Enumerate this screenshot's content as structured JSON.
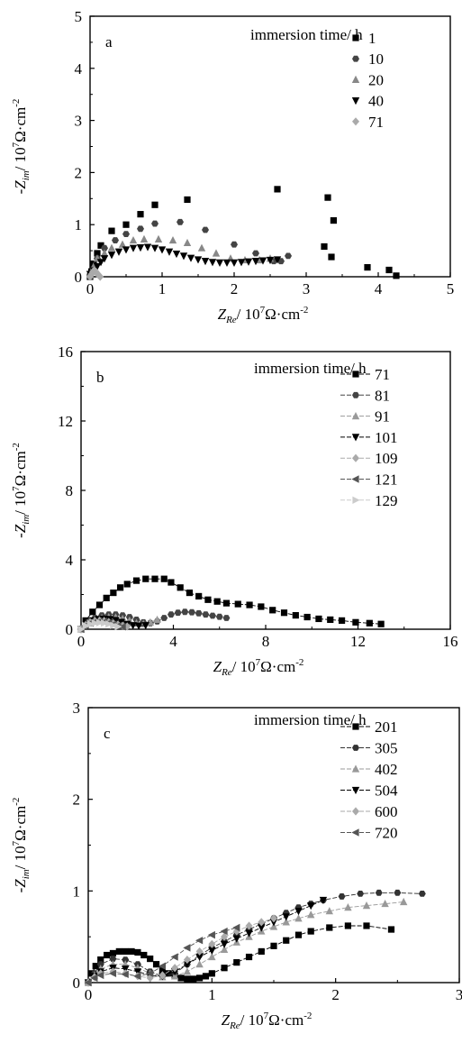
{
  "chart_data": [
    {
      "type": "scatter",
      "panel_label": "a",
      "legend_title": "immersion time/ h",
      "legend_placement": "top-right",
      "connected": false,
      "xlabel": {
        "main": "Z",
        "sub": "Re",
        "unit_pre": "/ 10",
        "sup": "7",
        "unit_post": "Ω·cm"
      },
      "ylabel": {
        "main": "-Z",
        "sub": "im",
        "unit_pre": "/ 10",
        "sup": "7",
        "unit_post": "Ω·cm"
      },
      "xlim": [
        0,
        5
      ],
      "ylim": [
        0,
        5
      ],
      "xticks": [
        "0",
        "1",
        "2",
        "3",
        "4",
        "5"
      ],
      "yticks": [
        "0",
        "1",
        "2",
        "3",
        "4",
        "5"
      ],
      "grid": false,
      "series": [
        {
          "name": "1",
          "marker": "square",
          "color": "#000000",
          "x": [
            0.0,
            0.02,
            0.05,
            0.1,
            0.15,
            0.3,
            0.5,
            0.7,
            0.9,
            1.35,
            2.6,
            3.25,
            3.3,
            3.35,
            3.38,
            3.85,
            4.15,
            4.25
          ],
          "y": [
            0.0,
            0.1,
            0.25,
            0.45,
            0.6,
            0.88,
            1.0,
            1.2,
            1.38,
            1.48,
            1.68,
            0.58,
            1.52,
            0.38,
            1.08,
            0.18,
            0.13,
            0.02
          ]
        },
        {
          "name": "10",
          "marker": "hexagon",
          "color": "#444444",
          "x": [
            0.0,
            0.05,
            0.1,
            0.2,
            0.35,
            0.5,
            0.7,
            0.9,
            1.25,
            1.6,
            2.0,
            2.3,
            2.55,
            2.65,
            2.75
          ],
          "y": [
            0.0,
            0.15,
            0.35,
            0.55,
            0.7,
            0.82,
            0.92,
            1.02,
            1.05,
            0.9,
            0.62,
            0.45,
            0.3,
            0.3,
            0.4
          ]
        },
        {
          "name": "20",
          "marker": "triangle-up",
          "color": "#888888",
          "x": [
            0.0,
            0.05,
            0.1,
            0.2,
            0.3,
            0.45,
            0.6,
            0.75,
            0.95,
            1.15,
            1.35,
            1.55,
            1.75,
            1.95,
            2.15,
            2.35,
            2.5
          ],
          "y": [
            0.05,
            0.2,
            0.35,
            0.45,
            0.55,
            0.62,
            0.7,
            0.72,
            0.72,
            0.7,
            0.65,
            0.55,
            0.45,
            0.35,
            0.32,
            0.32,
            0.35
          ]
        },
        {
          "name": "40",
          "marker": "triangle-down",
          "color": "#000000",
          "x": [
            0.0,
            0.05,
            0.1,
            0.15,
            0.2,
            0.3,
            0.4,
            0.5,
            0.6,
            0.7,
            0.8,
            0.9,
            1.0,
            1.1,
            1.2,
            1.3,
            1.4,
            1.5,
            1.6,
            1.7,
            1.8,
            1.9,
            2.0,
            2.1,
            2.2,
            2.3,
            2.4,
            2.5,
            2.6
          ],
          "y": [
            0.05,
            0.12,
            0.2,
            0.28,
            0.35,
            0.42,
            0.48,
            0.52,
            0.55,
            0.56,
            0.57,
            0.55,
            0.52,
            0.48,
            0.44,
            0.4,
            0.36,
            0.33,
            0.3,
            0.28,
            0.27,
            0.27,
            0.27,
            0.28,
            0.29,
            0.3,
            0.31,
            0.32,
            0.33
          ]
        },
        {
          "name": "71",
          "marker": "diamond",
          "color": "#aaaaaa",
          "x": [
            0.0,
            0.02,
            0.04,
            0.06,
            0.08,
            0.1,
            0.12,
            0.14
          ],
          "y": [
            0.0,
            0.05,
            0.1,
            0.12,
            0.1,
            0.06,
            0.03,
            0.0
          ]
        }
      ]
    },
    {
      "type": "line",
      "panel_label": "b",
      "legend_title": "immersion time/ h",
      "legend_placement": "top-right",
      "connected": true,
      "xlabel": {
        "main": "Z",
        "sub": "Re",
        "unit_pre": "/ 10",
        "sup": "7",
        "unit_post": "Ω·cm"
      },
      "ylabel": {
        "main": "-Z",
        "sub": "im",
        "unit_pre": "/ 10",
        "sup": "7",
        "unit_post": "Ω·cm"
      },
      "xlim": [
        0,
        16
      ],
      "ylim": [
        0,
        16
      ],
      "xticks": [
        "0",
        "4",
        "8",
        "12",
        "16"
      ],
      "yticks": [
        "0",
        "4",
        "8",
        "12",
        "16"
      ],
      "grid": false,
      "series": [
        {
          "name": "71",
          "marker": "square",
          "color": "#000000",
          "x": [
            0.0,
            0.2,
            0.5,
            0.8,
            1.1,
            1.4,
            1.7,
            2.0,
            2.4,
            2.8,
            3.2,
            3.6,
            3.9,
            4.3,
            4.7,
            5.1,
            5.5,
            5.9,
            6.3,
            6.8,
            7.3,
            7.8,
            8.3,
            8.8,
            9.3,
            9.8,
            10.3,
            10.8,
            11.3,
            11.9,
            12.5,
            13.0
          ],
          "y": [
            0.0,
            0.5,
            1.0,
            1.4,
            1.8,
            2.1,
            2.4,
            2.6,
            2.8,
            2.9,
            2.9,
            2.9,
            2.7,
            2.4,
            2.1,
            1.9,
            1.7,
            1.6,
            1.5,
            1.45,
            1.4,
            1.3,
            1.1,
            0.95,
            0.8,
            0.7,
            0.6,
            0.55,
            0.5,
            0.4,
            0.35,
            0.3
          ]
        },
        {
          "name": "81",
          "marker": "hexagon",
          "color": "#444444",
          "x": [
            0.0,
            0.3,
            0.6,
            0.9,
            1.2,
            1.5,
            1.8,
            2.1,
            2.4,
            2.7,
            3.0,
            3.3,
            3.6,
            3.9,
            4.2,
            4.5,
            4.8,
            5.1,
            5.4,
            5.7,
            6.0,
            6.3
          ],
          "y": [
            0.0,
            0.4,
            0.65,
            0.8,
            0.85,
            0.85,
            0.8,
            0.7,
            0.55,
            0.4,
            0.35,
            0.45,
            0.65,
            0.85,
            0.95,
            1.0,
            0.98,
            0.92,
            0.85,
            0.78,
            0.72,
            0.65
          ]
        },
        {
          "name": "91",
          "marker": "triangle-up",
          "color": "#999999",
          "x": [
            0.0,
            0.3,
            0.6,
            0.9,
            1.2,
            1.5,
            1.8,
            2.1,
            2.4,
            2.7,
            3.0,
            3.3
          ],
          "y": [
            0.0,
            0.35,
            0.55,
            0.65,
            0.7,
            0.68,
            0.6,
            0.5,
            0.35,
            0.3,
            0.4,
            0.55
          ]
        },
        {
          "name": "101",
          "marker": "triangle-down",
          "color": "#000000",
          "x": [
            0.0,
            0.25,
            0.5,
            0.75,
            1.0,
            1.25,
            1.5,
            1.75,
            2.0,
            2.25,
            2.5,
            2.8
          ],
          "y": [
            0.0,
            0.3,
            0.5,
            0.58,
            0.6,
            0.58,
            0.52,
            0.42,
            0.3,
            0.22,
            0.2,
            0.22
          ]
        },
        {
          "name": "109",
          "marker": "diamond",
          "color": "#aaaaaa",
          "x": [
            0.0,
            0.2,
            0.4,
            0.6,
            0.8,
            1.0,
            1.2,
            1.4,
            1.6,
            1.8,
            2.0
          ],
          "y": [
            0.0,
            0.25,
            0.4,
            0.48,
            0.5,
            0.48,
            0.42,
            0.34,
            0.26,
            0.2,
            0.16
          ]
        },
        {
          "name": "121",
          "marker": "triangle-left",
          "color": "#555555",
          "x": [
            0.0,
            0.2,
            0.4,
            0.6,
            0.8,
            1.0,
            1.2,
            1.4,
            1.6,
            1.8
          ],
          "y": [
            0.0,
            0.22,
            0.35,
            0.42,
            0.44,
            0.42,
            0.36,
            0.28,
            0.2,
            0.14
          ]
        },
        {
          "name": "129",
          "marker": "triangle-right",
          "color": "#cccccc",
          "x": [
            0.0,
            0.2,
            0.4,
            0.6,
            0.8,
            1.0,
            1.2,
            1.4,
            1.6
          ],
          "y": [
            0.0,
            0.2,
            0.3,
            0.36,
            0.38,
            0.36,
            0.3,
            0.22,
            0.15
          ]
        }
      ]
    },
    {
      "type": "line",
      "panel_label": "c",
      "legend_title": "immersion time/ h",
      "legend_placement": "top-right",
      "connected": true,
      "xlabel": {
        "main": "Z",
        "sub": "Re",
        "unit_pre": "/ 10",
        "sup": "7",
        "unit_post": "Ω·cm"
      },
      "ylabel": {
        "main": "-Z",
        "sub": "im",
        "unit_pre": "/ 10",
        "sup": "7",
        "unit_post": "Ω·cm"
      },
      "xlim": [
        0,
        3
      ],
      "ylim": [
        0,
        3
      ],
      "xticks": [
        "0",
        "1",
        "2",
        "3"
      ],
      "yticks": [
        "0",
        "1",
        "2",
        "3"
      ],
      "grid": false,
      "series": [
        {
          "name": "201",
          "marker": "square",
          "color": "#000000",
          "x": [
            0.0,
            0.03,
            0.06,
            0.1,
            0.15,
            0.2,
            0.25,
            0.3,
            0.35,
            0.4,
            0.45,
            0.5,
            0.55,
            0.6,
            0.65,
            0.7,
            0.75,
            0.8,
            0.85,
            0.9,
            0.95,
            1.0,
            1.1,
            1.2,
            1.3,
            1.4,
            1.5,
            1.6,
            1.7,
            1.8,
            1.95,
            2.1,
            2.25,
            2.45
          ],
          "y": [
            0.0,
            0.1,
            0.18,
            0.25,
            0.3,
            0.32,
            0.34,
            0.34,
            0.34,
            0.33,
            0.3,
            0.26,
            0.2,
            0.14,
            0.1,
            0.07,
            0.05,
            0.04,
            0.04,
            0.05,
            0.07,
            0.1,
            0.16,
            0.22,
            0.28,
            0.34,
            0.4,
            0.46,
            0.52,
            0.56,
            0.6,
            0.62,
            0.62,
            0.58
          ]
        },
        {
          "name": "305",
          "marker": "hexagon",
          "color": "#333333",
          "x": [
            0.0,
            0.05,
            0.1,
            0.2,
            0.3,
            0.4,
            0.5,
            0.6,
            0.7,
            0.8,
            0.9,
            1.0,
            1.1,
            1.2,
            1.3,
            1.4,
            1.5,
            1.6,
            1.7,
            1.8,
            1.9,
            2.05,
            2.2,
            2.35,
            2.5,
            2.7
          ],
          "y": [
            0.0,
            0.1,
            0.2,
            0.26,
            0.25,
            0.2,
            0.12,
            0.07,
            0.1,
            0.2,
            0.3,
            0.38,
            0.45,
            0.52,
            0.58,
            0.64,
            0.7,
            0.76,
            0.82,
            0.86,
            0.9,
            0.94,
            0.97,
            0.98,
            0.98,
            0.97
          ]
        },
        {
          "name": "402",
          "marker": "triangle-up",
          "color": "#999999",
          "x": [
            0.0,
            0.05,
            0.1,
            0.2,
            0.3,
            0.4,
            0.5,
            0.6,
            0.7,
            0.8,
            0.9,
            1.0,
            1.1,
            1.2,
            1.3,
            1.4,
            1.5,
            1.6,
            1.7,
            1.8,
            1.95,
            2.1,
            2.25,
            2.4,
            2.55
          ],
          "y": [
            0.0,
            0.08,
            0.15,
            0.2,
            0.2,
            0.16,
            0.1,
            0.06,
            0.07,
            0.12,
            0.2,
            0.28,
            0.36,
            0.44,
            0.5,
            0.56,
            0.61,
            0.66,
            0.7,
            0.74,
            0.78,
            0.82,
            0.84,
            0.86,
            0.88
          ]
        },
        {
          "name": "504",
          "marker": "triangle-down",
          "color": "#000000",
          "x": [
            0.0,
            0.05,
            0.1,
            0.2,
            0.3,
            0.4,
            0.5,
            0.6,
            0.7,
            0.8,
            0.9,
            1.0,
            1.1,
            1.2,
            1.3,
            1.4,
            1.5,
            1.6,
            1.7,
            1.8,
            1.9
          ],
          "y": [
            0.0,
            0.07,
            0.12,
            0.16,
            0.15,
            0.12,
            0.08,
            0.07,
            0.12,
            0.2,
            0.28,
            0.35,
            0.42,
            0.48,
            0.54,
            0.6,
            0.66,
            0.72,
            0.78,
            0.84,
            0.9
          ]
        },
        {
          "name": "600",
          "marker": "diamond",
          "color": "#aaaaaa",
          "x": [
            0.0,
            0.05,
            0.1,
            0.2,
            0.3,
            0.4,
            0.5,
            0.6,
            0.7,
            0.8,
            0.9,
            1.0,
            1.1,
            1.2,
            1.3,
            1.4,
            1.5
          ],
          "y": [
            0.0,
            0.06,
            0.1,
            0.12,
            0.1,
            0.07,
            0.05,
            0.08,
            0.16,
            0.25,
            0.34,
            0.42,
            0.5,
            0.56,
            0.62,
            0.66,
            0.7
          ]
        },
        {
          "name": "720",
          "marker": "triangle-left",
          "color": "#555555",
          "x": [
            0.0,
            0.05,
            0.1,
            0.2,
            0.3,
            0.4,
            0.5,
            0.6,
            0.7,
            0.8,
            0.9,
            1.0,
            1.1,
            1.2
          ],
          "y": [
            0.0,
            0.05,
            0.08,
            0.1,
            0.09,
            0.07,
            0.1,
            0.18,
            0.28,
            0.38,
            0.46,
            0.52,
            0.56,
            0.6
          ]
        }
      ]
    }
  ]
}
